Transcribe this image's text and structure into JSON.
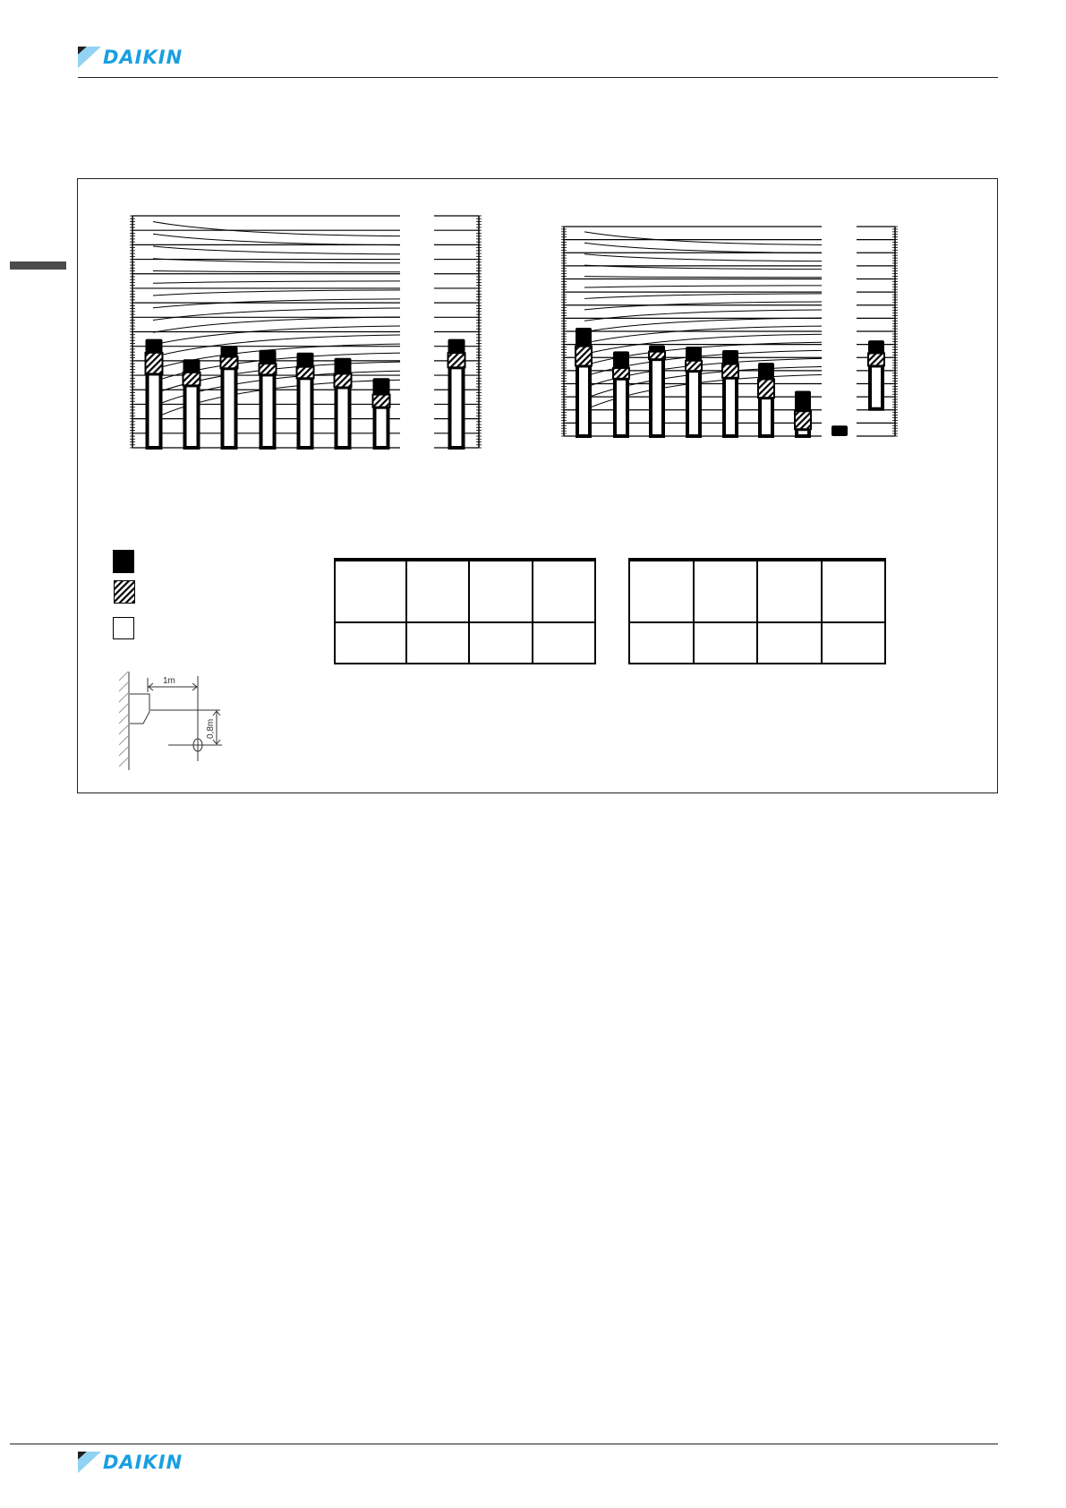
{
  "header": {
    "logo_text": "DAIKIN"
  },
  "footer": {
    "logo_text": "DAIKIN"
  },
  "colors": {
    "logo_blue": "#1a9fe0",
    "logo_light_blue": "#92d2f2",
    "side_tab": "#4d4a4c"
  },
  "legend": [
    {
      "pattern": "solid-black"
    },
    {
      "pattern": "hatched"
    },
    {
      "pattern": "white"
    }
  ],
  "diagram": {
    "horizontal_label": "1m",
    "vertical_label": "0,8m"
  },
  "chart_data": [
    {
      "type": "bar",
      "stacked_levels": true,
      "grid": true,
      "background_curves": "NC",
      "grid_divisions": 16,
      "bars": [
        {
          "top": 7.5,
          "hatch_top": 6.56,
          "white_top": 5.1
        },
        {
          "top": 6.1,
          "hatch_top": 5.2,
          "white_top": 4.3
        },
        {
          "top": 7.0,
          "hatch_top": 6.27,
          "white_top": 5.48
        },
        {
          "top": 6.75,
          "hatch_top": 5.8,
          "white_top": 5.04
        },
        {
          "top": 6.56,
          "hatch_top": 5.58,
          "white_top": 4.8
        },
        {
          "top": 6.19,
          "hatch_top": 5.1,
          "white_top": 4.17
        },
        {
          "top": 4.8,
          "hatch_top": 3.67,
          "white_top": 2.8
        }
      ],
      "overall": {
        "top": 7.5,
        "hatch_top": 6.54,
        "white_top": 5.54
      }
    },
    {
      "type": "bar",
      "stacked_levels": true,
      "grid": true,
      "background_curves": "NC",
      "grid_divisions": 16,
      "bars": [
        {
          "top": 8.27,
          "hatch_top": 6.86,
          "white_top": 5.37
        },
        {
          "top": 6.47,
          "hatch_top": 5.2,
          "white_top": 4.39
        },
        {
          "top": 6.93,
          "hatch_top": 6.45,
          "white_top": 5.87
        },
        {
          "top": 6.83,
          "hatch_top": 5.76,
          "white_top": 4.98
        },
        {
          "top": 6.56,
          "hatch_top": 5.5,
          "white_top": 4.46
        },
        {
          "top": 5.6,
          "hatch_top": 4.34,
          "white_top": 2.93
        },
        {
          "top": 3.45,
          "hatch_top": 1.9,
          "white_top": 0.53
        },
        {
          "top": 0.8,
          "hatch_top": 0,
          "white_top": 0
        }
      ],
      "overall": {
        "top": 7.31,
        "hatch_top": 6.33,
        "white_top": 5.37,
        "bottom": 2.07
      }
    }
  ]
}
